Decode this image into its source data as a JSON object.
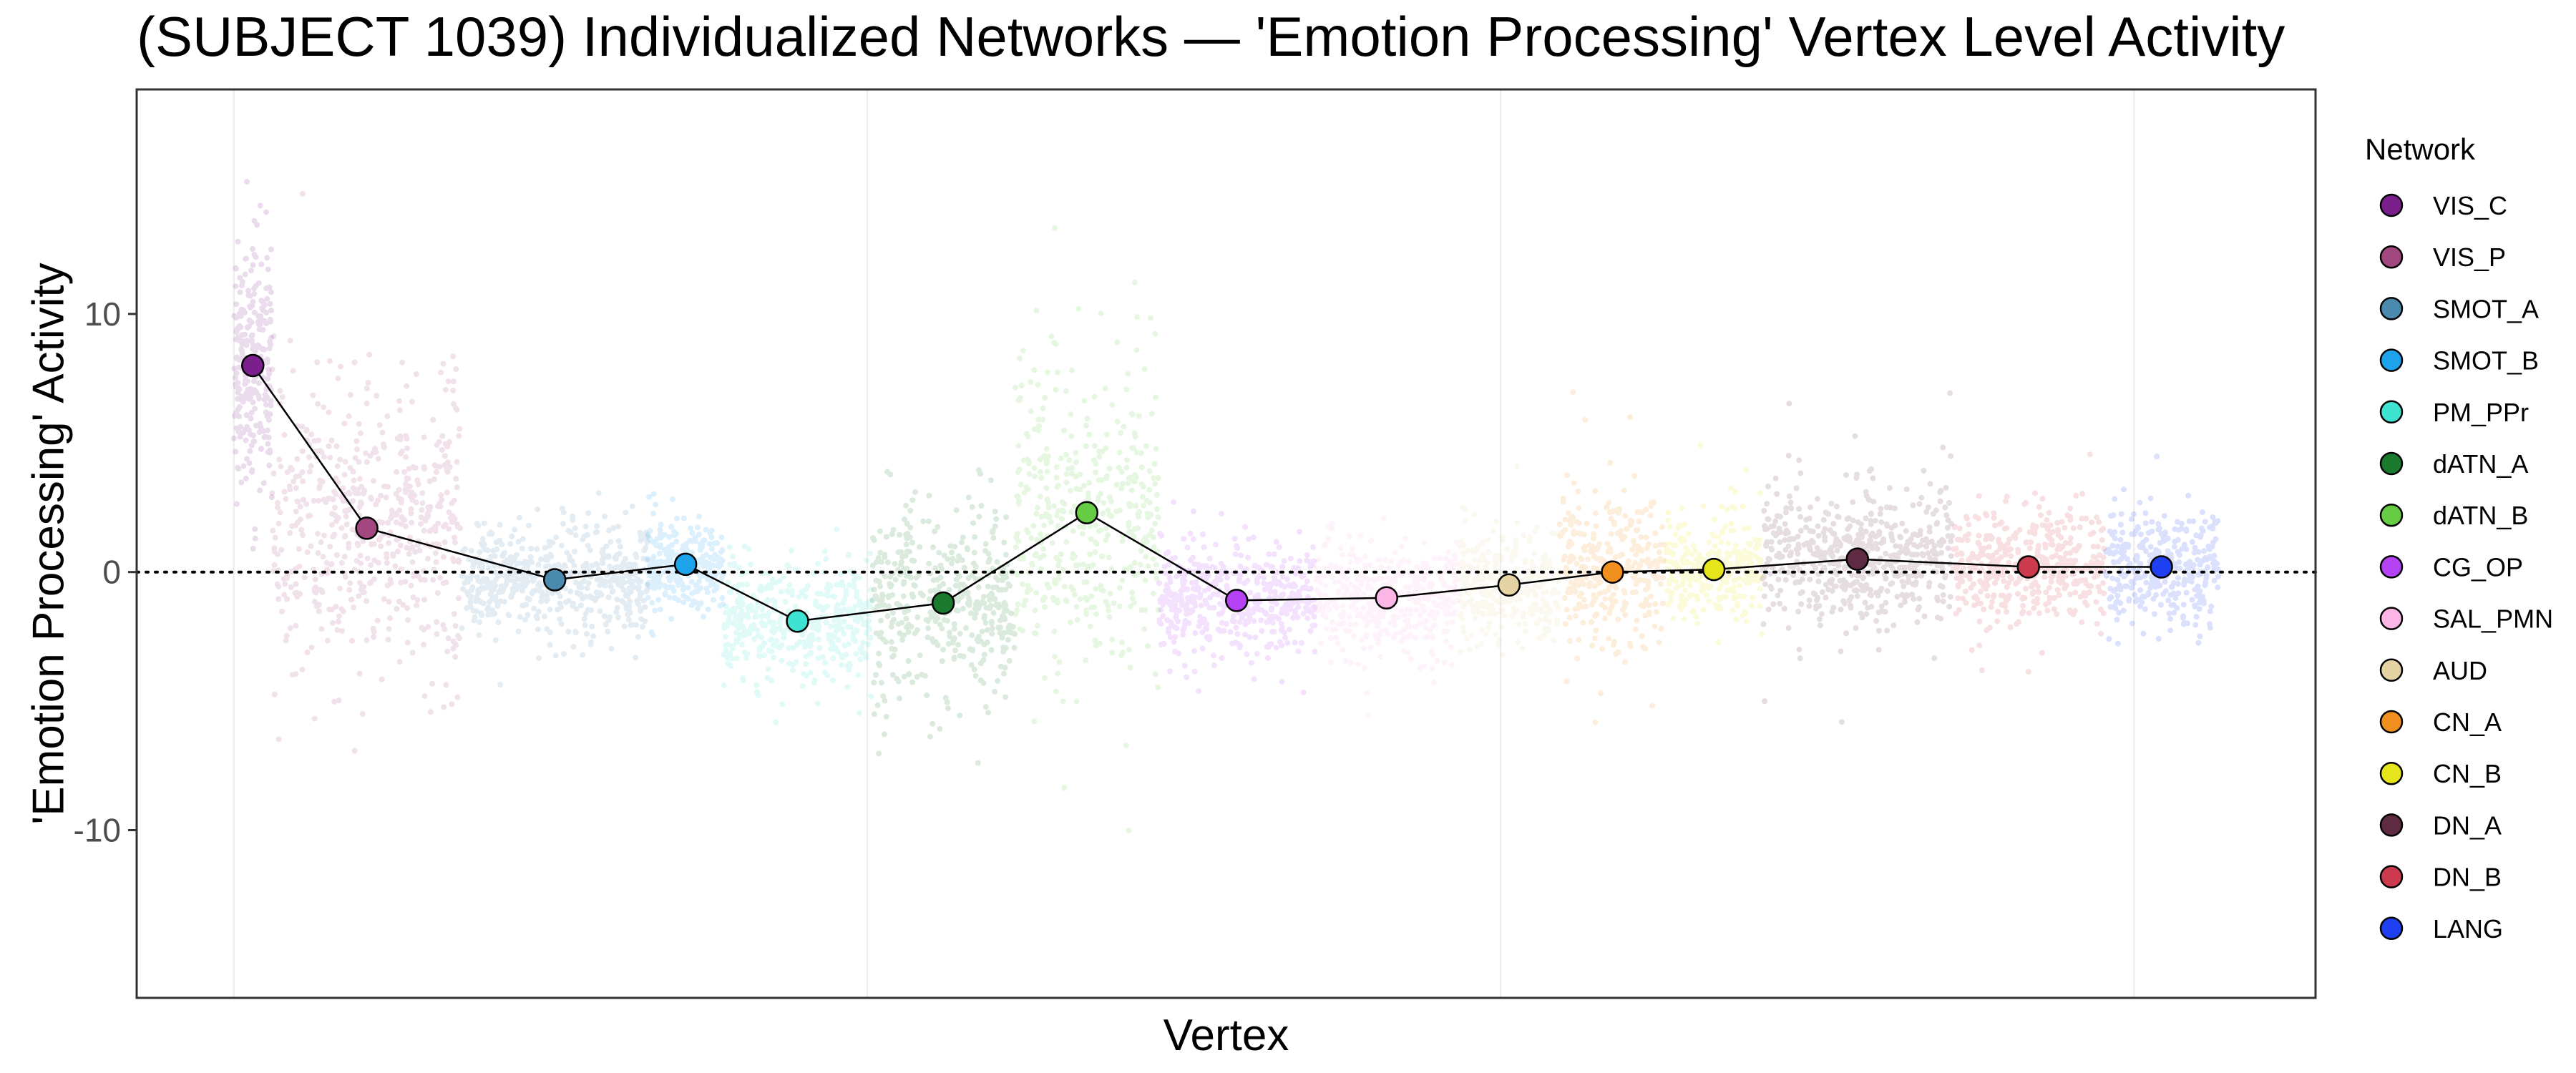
{
  "chart_data": {
    "type": "scatter",
    "title": "(SUBJECT 1039) Individualized Networks — 'Emotion Processing' Vertex Level Activity",
    "xlabel": "Vertex",
    "ylabel": "'Emotion Processing' Activity",
    "ylim": [
      -16.5,
      18.7
    ],
    "yticks": [
      -10,
      0,
      10
    ],
    "grid": true,
    "reference_line": {
      "y": 0,
      "style": "dotted"
    },
    "legend": {
      "title": "Network",
      "position": "right"
    },
    "networks": [
      {
        "name": "VIS_C",
        "color": "#7B1F8C",
        "mean": 8.0,
        "spread": 2.4,
        "vertex_start": 0,
        "vertex_end": 900
      },
      {
        "name": "VIS_P",
        "color": "#A2477F",
        "mean": 1.7,
        "spread": 2.6,
        "vertex_start": 900,
        "vertex_end": 5400
      },
      {
        "name": "SMOT_A",
        "color": "#4A8AAE",
        "mean": -0.3,
        "spread": 1.0,
        "vertex_start": 5400,
        "vertex_end": 9800
      },
      {
        "name": "SMOT_B",
        "color": "#1CA3EC",
        "mean": 0.3,
        "spread": 0.8,
        "vertex_start": 9800,
        "vertex_end": 11600
      },
      {
        "name": "PM_PPr",
        "color": "#3FE3D2",
        "mean": -1.9,
        "spread": 1.1,
        "vertex_start": 11600,
        "vertex_end": 15100
      },
      {
        "name": "dATN_A",
        "color": "#1A7A2E",
        "mean": -1.2,
        "spread": 1.6,
        "vertex_start": 15100,
        "vertex_end": 18500
      },
      {
        "name": "dATN_B",
        "color": "#66CC44",
        "mean": 2.3,
        "spread": 3.0,
        "vertex_start": 18500,
        "vertex_end": 21900
      },
      {
        "name": "CG_OP",
        "color": "#B542F5",
        "mean": -1.1,
        "spread": 1.0,
        "vertex_start": 21900,
        "vertex_end": 25600
      },
      {
        "name": "SAL_PMN",
        "color": "#FCB6E6",
        "mean": -1.0,
        "spread": 1.0,
        "vertex_start": 25600,
        "vertex_end": 29000
      },
      {
        "name": "AUD",
        "color": "#E6D3A3",
        "mean": -0.5,
        "spread": 1.0,
        "vertex_start": 29000,
        "vertex_end": 31400
      },
      {
        "name": "CN_A",
        "color": "#F1901F",
        "mean": 0.0,
        "spread": 1.4,
        "vertex_start": 31400,
        "vertex_end": 33900
      },
      {
        "name": "CN_B",
        "color": "#E6E41A",
        "mean": 0.1,
        "spread": 1.0,
        "vertex_start": 33900,
        "vertex_end": 36200
      },
      {
        "name": "DN_A",
        "color": "#5E2B43",
        "mean": 0.5,
        "spread": 1.3,
        "vertex_start": 36200,
        "vertex_end": 40700
      },
      {
        "name": "DN_B",
        "color": "#CC3A4D",
        "mean": 0.2,
        "spread": 1.1,
        "vertex_start": 40700,
        "vertex_end": 44300
      },
      {
        "name": "LANG",
        "color": "#1F3FF2",
        "mean": 0.2,
        "spread": 1.1,
        "vertex_start": 44300,
        "vertex_end": 47000
      }
    ],
    "xlim": [
      -2300,
      49300
    ]
  }
}
